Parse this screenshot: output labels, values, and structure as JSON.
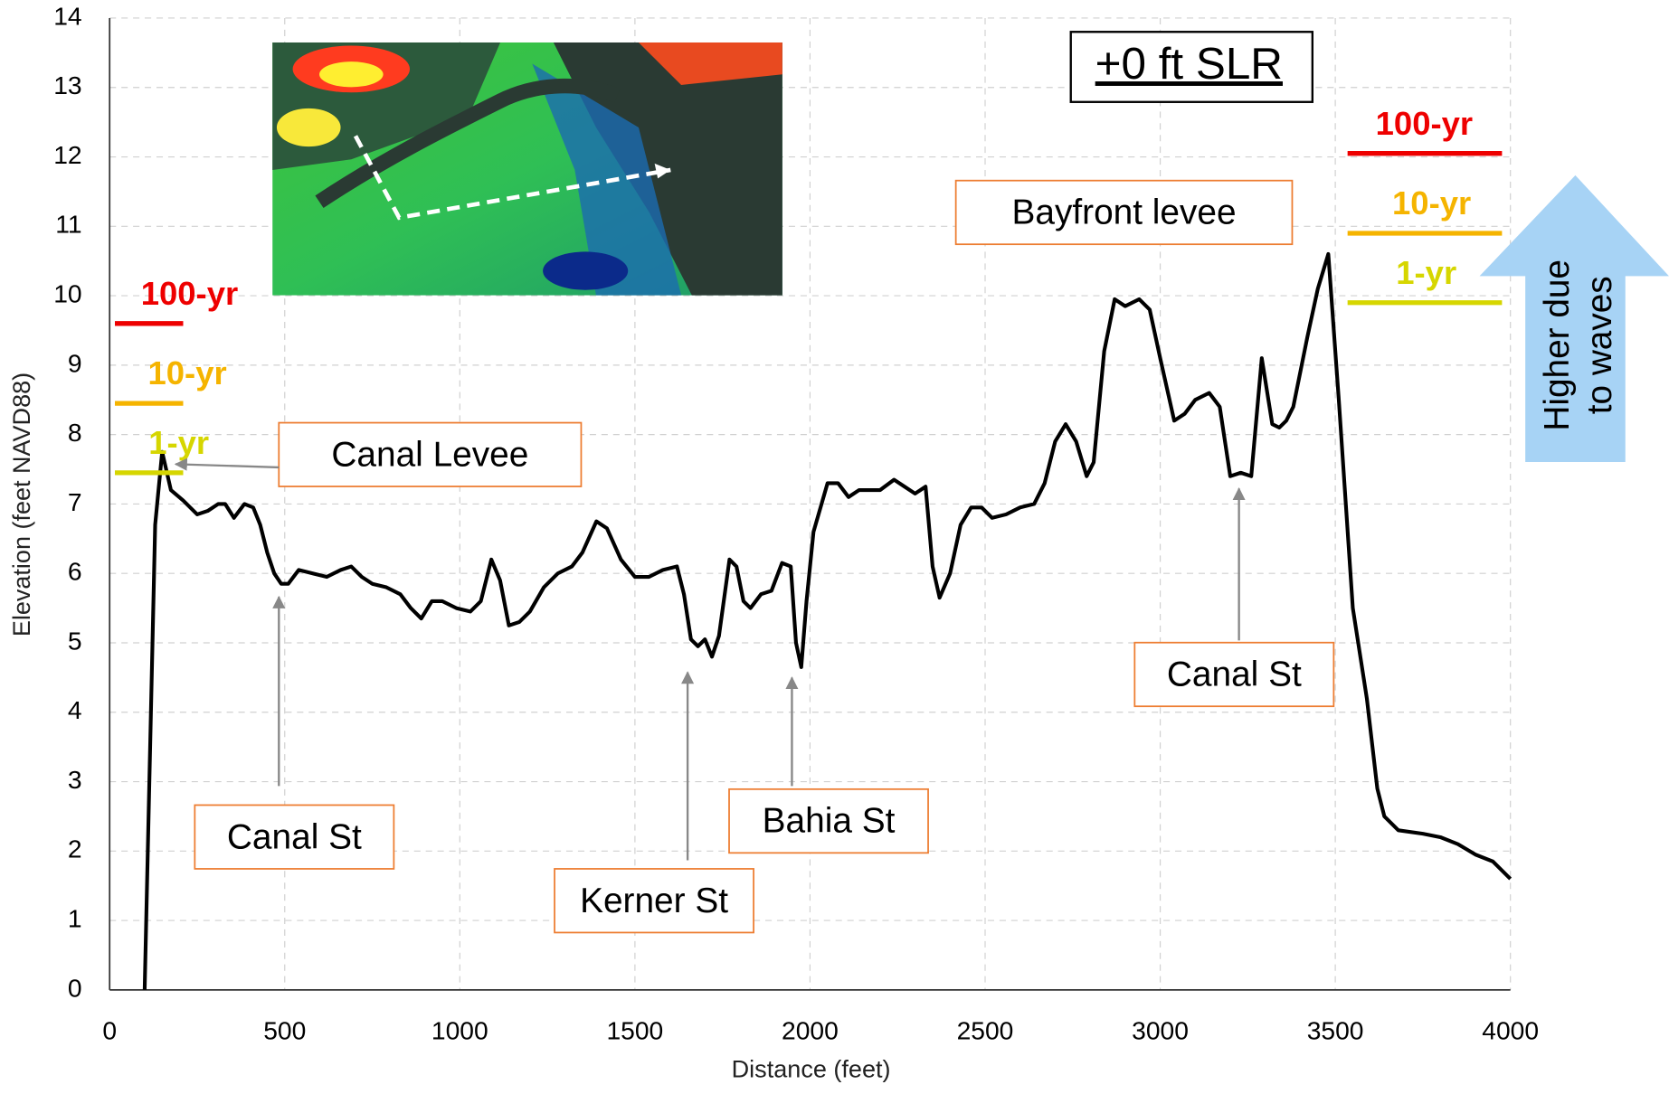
{
  "chart_data": {
    "type": "line",
    "x_label": "Distance (feet)",
    "y_label": "Elevation (feet NAVD88)",
    "xlim": [
      0,
      4000
    ],
    "xticks": [
      0,
      500,
      1000,
      1500,
      2000,
      2500,
      3000,
      3500,
      4000
    ],
    "ylim": [
      0,
      14
    ],
    "yticks": [
      0,
      1,
      2,
      3,
      4,
      5,
      6,
      7,
      8,
      9,
      10,
      11,
      12,
      13,
      14
    ],
    "grid": true,
    "color": "#000000",
    "x": [
      100,
      130,
      150,
      175,
      210,
      250,
      280,
      310,
      330,
      355,
      385,
      410,
      430,
      450,
      470,
      490,
      510,
      540,
      580,
      620,
      660,
      690,
      720,
      750,
      790,
      830,
      860,
      890,
      920,
      950,
      990,
      1030,
      1060,
      1090,
      1115,
      1140,
      1170,
      1200,
      1240,
      1280,
      1320,
      1350,
      1390,
      1420,
      1460,
      1500,
      1540,
      1580,
      1620,
      1640,
      1660,
      1680,
      1700,
      1720,
      1740,
      1770,
      1790,
      1810,
      1830,
      1860,
      1890,
      1920,
      1945,
      1960,
      1975,
      1990,
      2010,
      2050,
      2080,
      2110,
      2140,
      2180,
      2200,
      2240,
      2270,
      2300,
      2330,
      2350,
      2370,
      2400,
      2430,
      2460,
      2490,
      2520,
      2560,
      2600,
      2640,
      2670,
      2700,
      2730,
      2760,
      2790,
      2810,
      2840,
      2870,
      2900,
      2940,
      2970,
      3000,
      3040,
      3070,
      3100,
      3140,
      3170,
      3200,
      3230,
      3260,
      3290,
      3320,
      3340,
      3360,
      3380,
      3420,
      3450,
      3480,
      3510,
      3550,
      3590,
      3620,
      3640,
      3680,
      3750,
      3800,
      3850,
      3900,
      3950,
      4000
    ],
    "values": [
      0,
      6.7,
      7.75,
      7.2,
      7.05,
      6.85,
      6.9,
      7.0,
      7.0,
      6.8,
      7.0,
      6.95,
      6.7,
      6.3,
      6.0,
      5.85,
      5.85,
      6.05,
      6.0,
      5.95,
      6.05,
      6.1,
      5.95,
      5.85,
      5.8,
      5.7,
      5.5,
      5.35,
      5.6,
      5.6,
      5.5,
      5.45,
      5.6,
      6.2,
      5.9,
      5.25,
      5.3,
      5.45,
      5.8,
      6.0,
      6.1,
      6.3,
      6.75,
      6.65,
      6.2,
      5.95,
      5.95,
      6.05,
      6.1,
      5.7,
      5.05,
      4.95,
      5.05,
      4.8,
      5.1,
      6.2,
      6.1,
      5.6,
      5.5,
      5.7,
      5.75,
      6.15,
      6.1,
      5.0,
      4.65,
      5.6,
      6.6,
      7.3,
      7.3,
      7.1,
      7.2,
      7.2,
      7.2,
      7.35,
      7.25,
      7.15,
      7.25,
      6.1,
      5.65,
      6.0,
      6.7,
      6.95,
      6.95,
      6.8,
      6.85,
      6.95,
      7.0,
      7.3,
      7.9,
      8.15,
      7.9,
      7.4,
      7.6,
      9.2,
      9.95,
      9.85,
      9.95,
      9.8,
      9.1,
      8.2,
      8.3,
      8.5,
      8.6,
      8.4,
      7.4,
      7.45,
      7.4,
      9.1,
      8.15,
      8.1,
      8.2,
      8.4,
      9.4,
      10.1,
      10.6,
      8.5,
      5.5,
      4.2,
      2.9,
      2.5,
      2.3,
      2.25,
      2.2,
      2.1,
      1.95,
      1.85,
      1.6
    ],
    "reference_lines": [
      {
        "label": "100-yr",
        "value": 9.6,
        "x_start": 15,
        "x_end": 210,
        "color": "#ee0000"
      },
      {
        "label": "10-yr",
        "value": 8.45,
        "x_start": 15,
        "x_end": 210,
        "color": "#f5b400"
      },
      {
        "label": "1-yr",
        "value": 7.45,
        "x_start": 15,
        "x_end": 210,
        "color": "#d6d600"
      },
      {
        "label": "100-yr",
        "value": 12.05,
        "x_start": 3535,
        "x_end": 3976,
        "color": "#ee0000"
      },
      {
        "label": "10-yr",
        "value": 10.9,
        "x_start": 3535,
        "x_end": 3976,
        "color": "#f5b400"
      },
      {
        "label": "1-yr",
        "value": 9.9,
        "x_start": 3535,
        "x_end": 3976,
        "color": "#d6d600"
      }
    ],
    "annotations": [
      "Canal Levee",
      "Canal St",
      "Kerner St",
      "Bahia St",
      "Canal St",
      "Bayfront levee"
    ],
    "scenario": "+0 ft SLR",
    "wave_note": [
      "Higher due",
      "to waves"
    ]
  }
}
